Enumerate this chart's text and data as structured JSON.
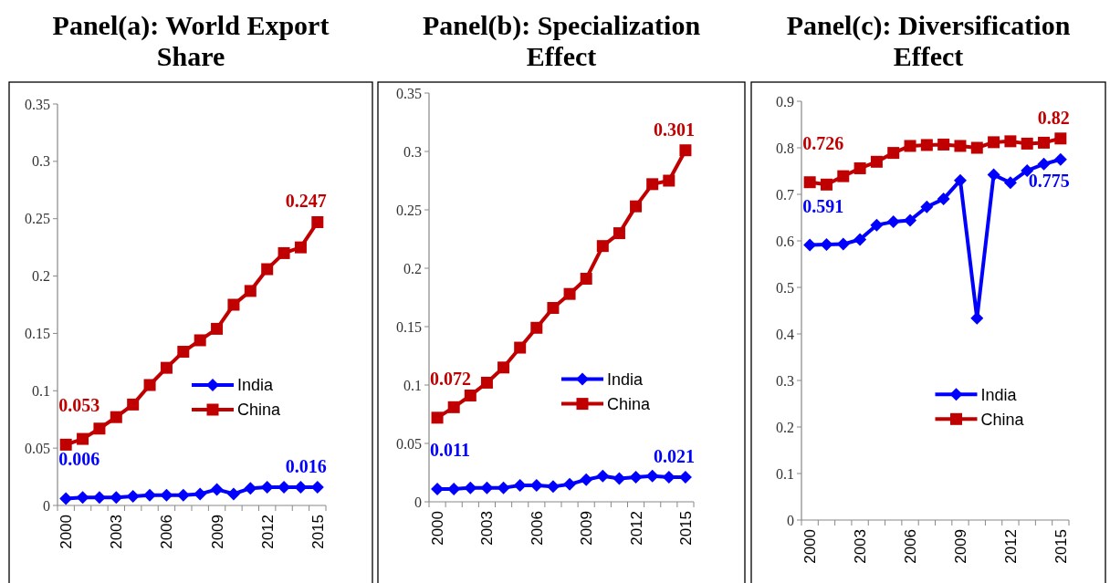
{
  "chart_data": [
    {
      "type": "line",
      "title": "Panel(a): World Export Share",
      "categories": [
        "2000",
        null,
        null,
        "2003",
        null,
        null,
        "2006",
        null,
        null,
        "2009",
        null,
        null,
        "2012",
        null,
        null,
        "2015"
      ],
      "ylim": [
        0,
        0.35
      ],
      "yticks": [
        0,
        0.05,
        0.1,
        0.15,
        0.2,
        0.25,
        0.3,
        0.35
      ],
      "legend": "right",
      "grid": false,
      "series": [
        {
          "name": "India",
          "color": "#0000ff",
          "marker": "diamond",
          "values": [
            0.006,
            0.007,
            0.007,
            0.007,
            0.008,
            0.009,
            0.009,
            0.009,
            0.01,
            0.014,
            0.01,
            0.015,
            0.016,
            0.016,
            0.016,
            0.016
          ],
          "value_labels": [
            "0.006",
            null,
            null,
            null,
            null,
            null,
            null,
            null,
            null,
            null,
            null,
            null,
            null,
            null,
            null,
            "0.016"
          ]
        },
        {
          "name": "China",
          "color": "#c00000",
          "marker": "square",
          "values": [
            0.053,
            0.058,
            0.067,
            0.077,
            0.088,
            0.105,
            0.12,
            0.134,
            0.144,
            0.154,
            0.175,
            0.187,
            0.206,
            0.22,
            0.225,
            0.247
          ],
          "value_labels": [
            "0.053",
            null,
            null,
            null,
            null,
            null,
            null,
            null,
            null,
            null,
            null,
            null,
            null,
            null,
            null,
            "0.247"
          ]
        }
      ]
    },
    {
      "type": "line",
      "title": "Panel(b): Specialization Effect",
      "categories": [
        "2000",
        null,
        null,
        "2003",
        null,
        null,
        "2006",
        null,
        null,
        "2009",
        null,
        null,
        "2012",
        null,
        null,
        "2015"
      ],
      "ylim": [
        0,
        0.35
      ],
      "yticks": [
        0,
        0.05,
        0.1,
        0.15,
        0.2,
        0.25,
        0.3,
        0.35
      ],
      "legend": "right",
      "grid": false,
      "series": [
        {
          "name": "India",
          "color": "#0000ff",
          "marker": "diamond",
          "values": [
            0.011,
            0.011,
            0.012,
            0.012,
            0.012,
            0.014,
            0.014,
            0.013,
            0.015,
            0.019,
            0.022,
            0.02,
            0.021,
            0.022,
            0.021,
            0.021
          ],
          "value_labels": [
            "0.011",
            null,
            null,
            null,
            null,
            null,
            null,
            null,
            null,
            null,
            null,
            null,
            null,
            null,
            null,
            "0.021"
          ]
        },
        {
          "name": "China",
          "color": "#c00000",
          "marker": "square",
          "values": [
            0.072,
            0.081,
            0.091,
            0.102,
            0.115,
            0.132,
            0.149,
            0.166,
            0.178,
            0.191,
            0.219,
            0.23,
            0.253,
            0.272,
            0.275,
            0.301
          ],
          "value_labels": [
            "0.072",
            null,
            null,
            null,
            null,
            null,
            null,
            null,
            null,
            null,
            null,
            null,
            null,
            null,
            null,
            "0.301"
          ]
        }
      ]
    },
    {
      "type": "line",
      "title": "Panel(c): Diversification Effect",
      "categories": [
        "2000",
        null,
        null,
        "2003",
        null,
        null,
        "2006",
        null,
        null,
        "2009",
        null,
        null,
        "2012",
        null,
        null,
        "2015"
      ],
      "ylim": [
        0,
        0.9
      ],
      "yticks": [
        0,
        0.1,
        0.2,
        0.3,
        0.4,
        0.5,
        0.6,
        0.7,
        0.8,
        0.9
      ],
      "legend": "right",
      "grid": false,
      "series": [
        {
          "name": "India",
          "color": "#0000ff",
          "marker": "diamond",
          "values": [
            0.591,
            0.592,
            0.593,
            0.603,
            0.634,
            0.641,
            0.644,
            0.673,
            0.69,
            0.73,
            0.434,
            0.742,
            0.725,
            0.751,
            0.765,
            0.775
          ],
          "value_labels": [
            "0.591",
            null,
            null,
            null,
            null,
            null,
            null,
            null,
            null,
            null,
            null,
            null,
            null,
            null,
            null,
            "0.775"
          ]
        },
        {
          "name": "China",
          "color": "#c00000",
          "marker": "square",
          "values": [
            0.726,
            0.721,
            0.739,
            0.756,
            0.77,
            0.789,
            0.804,
            0.806,
            0.807,
            0.804,
            0.8,
            0.812,
            0.814,
            0.809,
            0.811,
            0.82
          ],
          "value_labels": [
            "0.726",
            null,
            null,
            null,
            null,
            null,
            null,
            null,
            null,
            null,
            null,
            null,
            null,
            null,
            null,
            "0.82"
          ]
        }
      ]
    }
  ]
}
